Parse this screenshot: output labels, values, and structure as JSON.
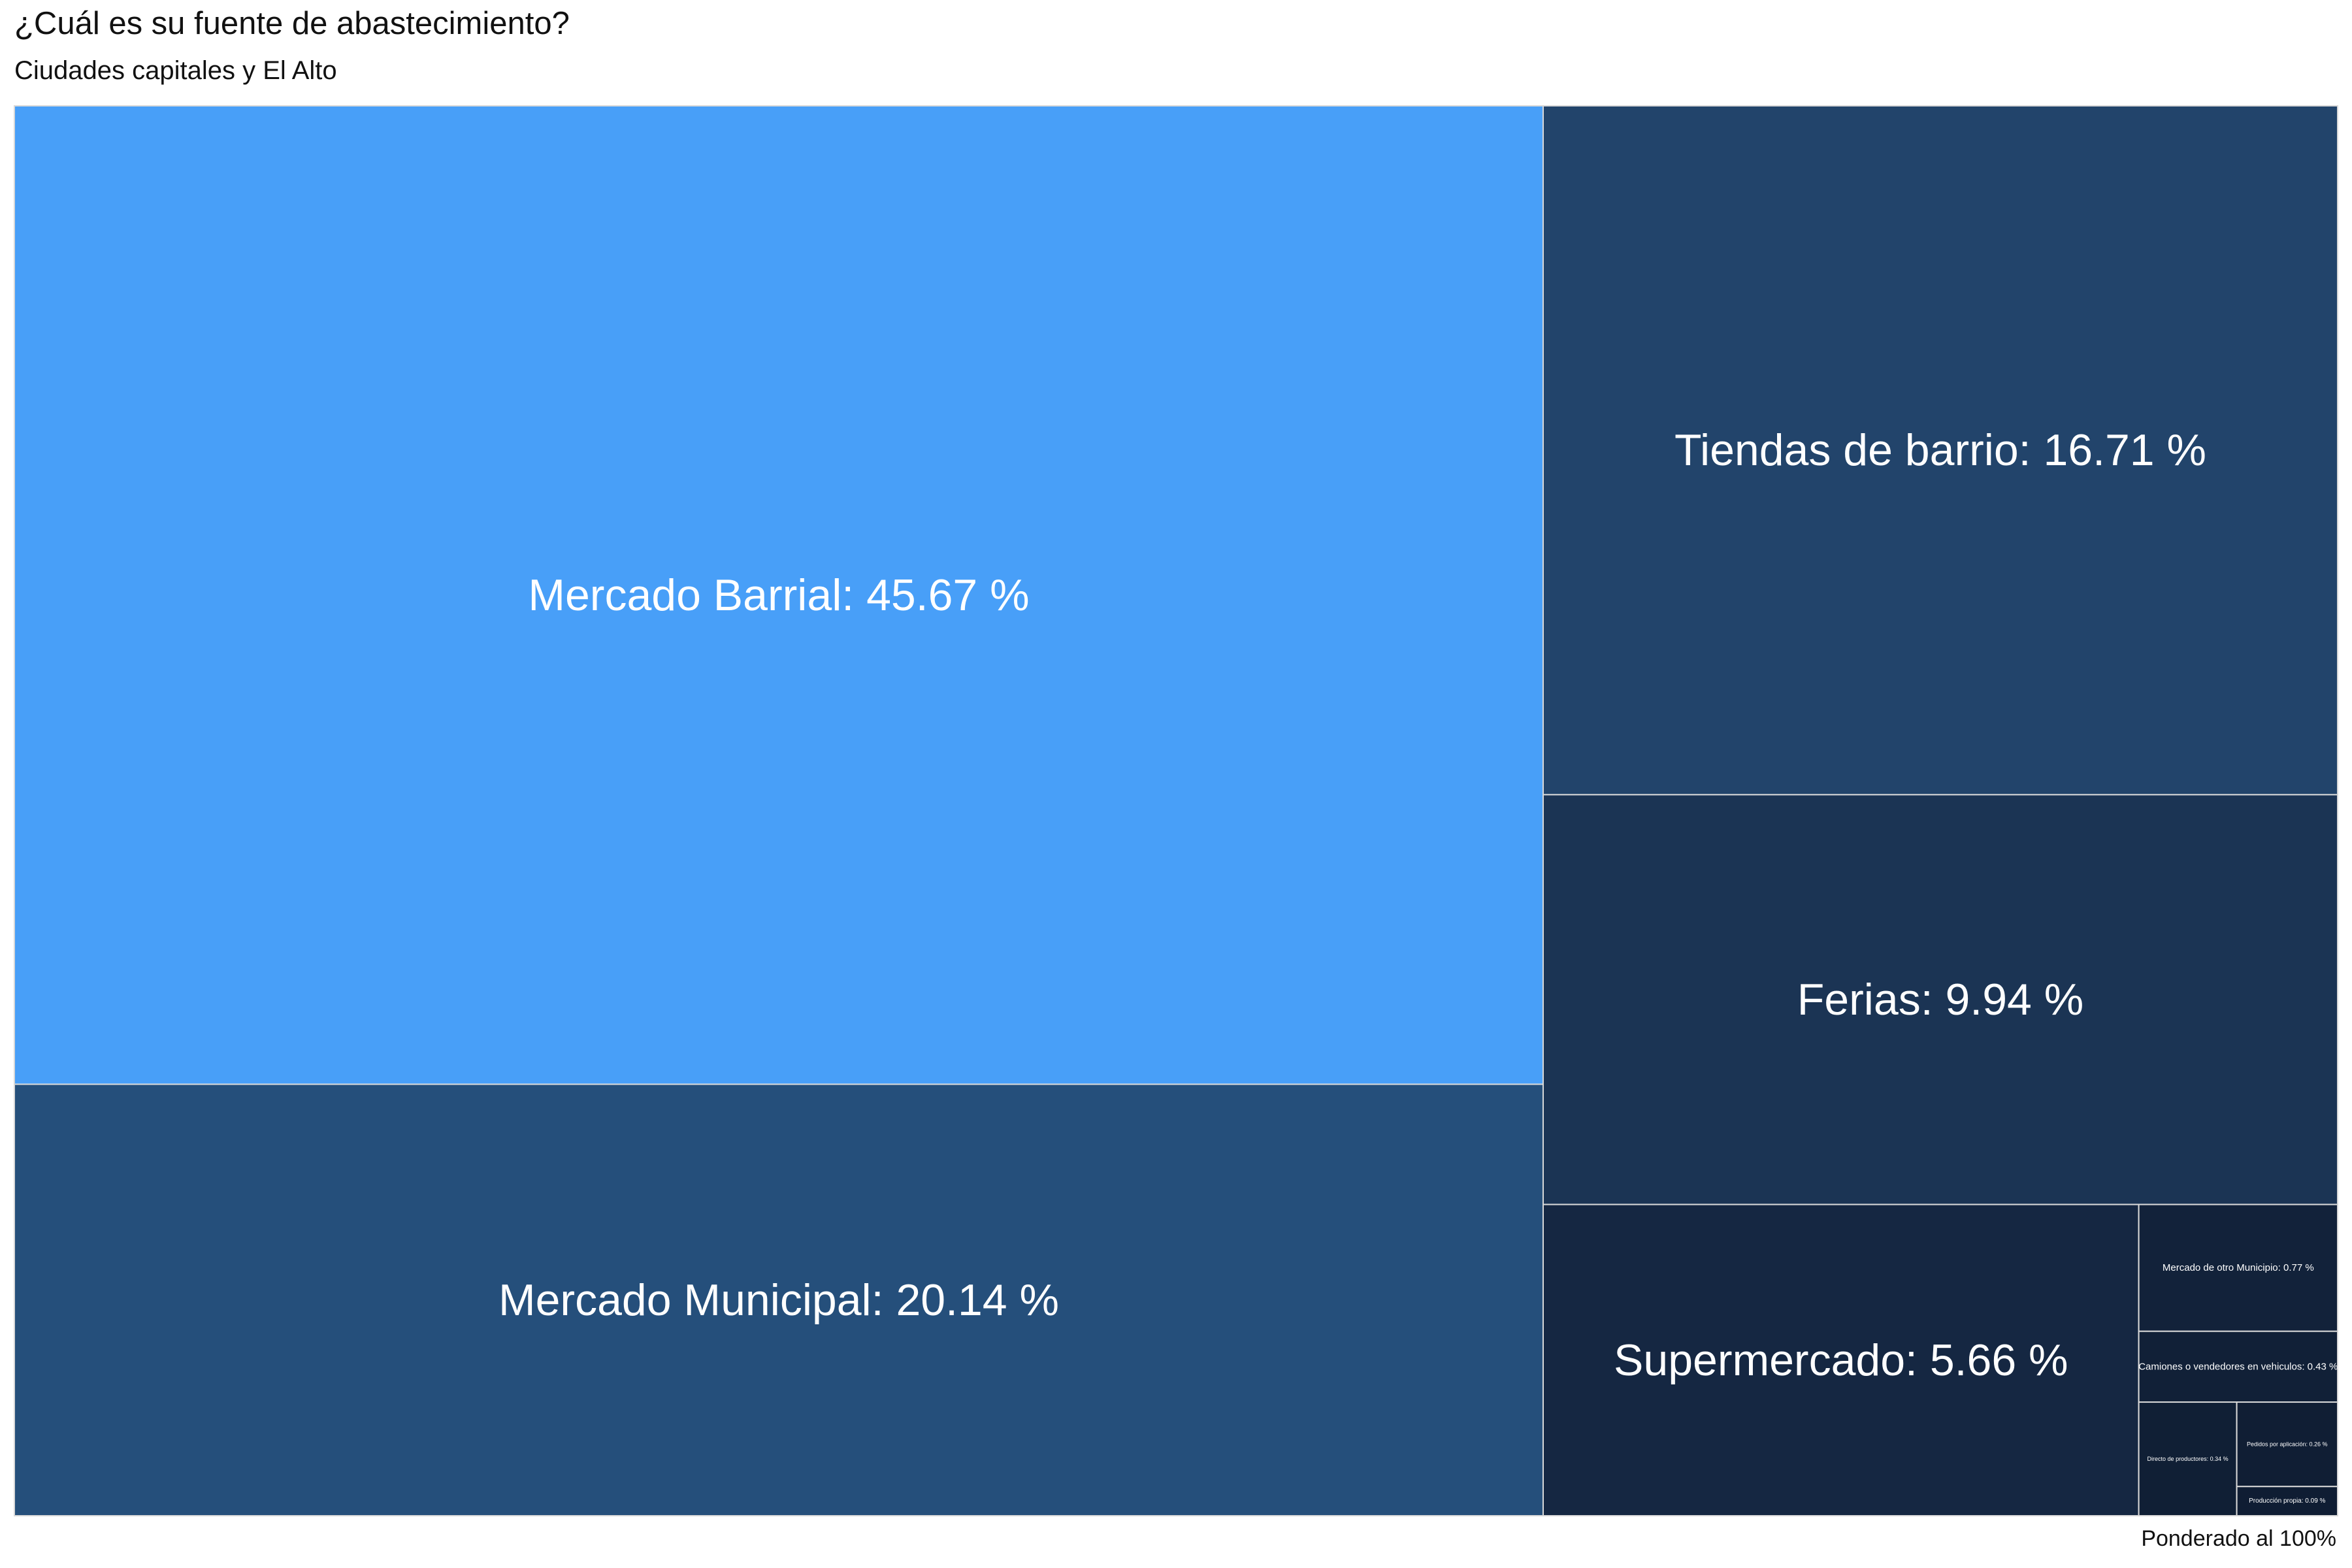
{
  "chart": {
    "title": "¿Cuál es su fuente de abastecimiento?",
    "subtitle": "Ciudades capitales y El Alto",
    "caption": "Ponderado al 100%"
  },
  "chart_data": {
    "type": "treemap",
    "title": "¿Cuál es su fuente de abastecimiento?",
    "subtitle": "Ciudades capitales y El Alto",
    "caption": "Ponderado al 100%",
    "unit": "%",
    "items": [
      {
        "label": "Mercado Barrial",
        "value": 45.67,
        "color": "#489ff8"
      },
      {
        "label": "Mercado Municipal",
        "value": 20.14,
        "color": "#254f7b"
      },
      {
        "label": "Tiendas de barrio",
        "value": 16.71,
        "color": "#22446b"
      },
      {
        "label": "Ferias",
        "value": 9.94,
        "color": "#1b3454"
      },
      {
        "label": "Supermercado",
        "value": 5.66,
        "color": "#152742"
      },
      {
        "label": "Mercado de otro Municipio",
        "value": 0.77,
        "color": "#12223a"
      },
      {
        "label": "Camiones o vendedores en vehiculos",
        "value": 0.43,
        "color": "#112037"
      },
      {
        "label": "Directo de productores",
        "value": 0.34,
        "color": "#101f35"
      },
      {
        "label": "Pedidos por aplicación",
        "value": 0.26,
        "color": "#101e34"
      },
      {
        "label": "Producción propia",
        "value": 0.09,
        "color": "#0f1d33"
      }
    ],
    "border_color": "#d9d9d9"
  }
}
